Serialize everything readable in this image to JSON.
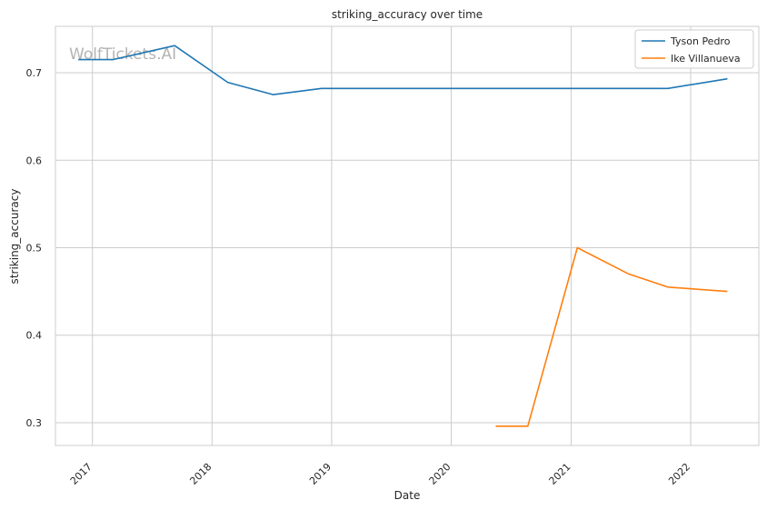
{
  "chart_data": {
    "type": "line",
    "title": "striking_accuracy over time",
    "xlabel": "Date",
    "ylabel": "striking_accuracy",
    "x_ticks": [
      "2017",
      "2018",
      "2019",
      "2020",
      "2021",
      "2022"
    ],
    "xlim": [
      "2016-09-10",
      "2022-07-28"
    ],
    "y_ticks": [
      "0.3",
      "0.4",
      "0.5",
      "0.6",
      "0.7"
    ],
    "ylim": [
      0.274,
      0.753
    ],
    "grid": true,
    "legend_position": "top-right",
    "watermark": "WolfTickets.AI",
    "series": [
      {
        "name": "Tyson Pedro",
        "color": "#1f77b4",
        "points": [
          {
            "x": "2016-11-19",
            "y": 0.715
          },
          {
            "x": "2017-03-04",
            "y": 0.715
          },
          {
            "x": "2017-09-09",
            "y": 0.731
          },
          {
            "x": "2018-02-18",
            "y": 0.689
          },
          {
            "x": "2018-07-07",
            "y": 0.675
          },
          {
            "x": "2018-12-01",
            "y": 0.682
          },
          {
            "x": "2021-10-23",
            "y": 0.682
          },
          {
            "x": "2022-04-23",
            "y": 0.693
          }
        ]
      },
      {
        "name": "Ike Villanueva",
        "color": "#ff7f0e",
        "points": [
          {
            "x": "2020-05-16",
            "y": 0.296
          },
          {
            "x": "2020-08-22",
            "y": 0.296
          },
          {
            "x": "2021-01-20",
            "y": 0.5
          },
          {
            "x": "2021-06-26",
            "y": 0.47
          },
          {
            "x": "2021-10-23",
            "y": 0.455
          },
          {
            "x": "2022-04-23",
            "y": 0.45
          }
        ]
      }
    ]
  }
}
